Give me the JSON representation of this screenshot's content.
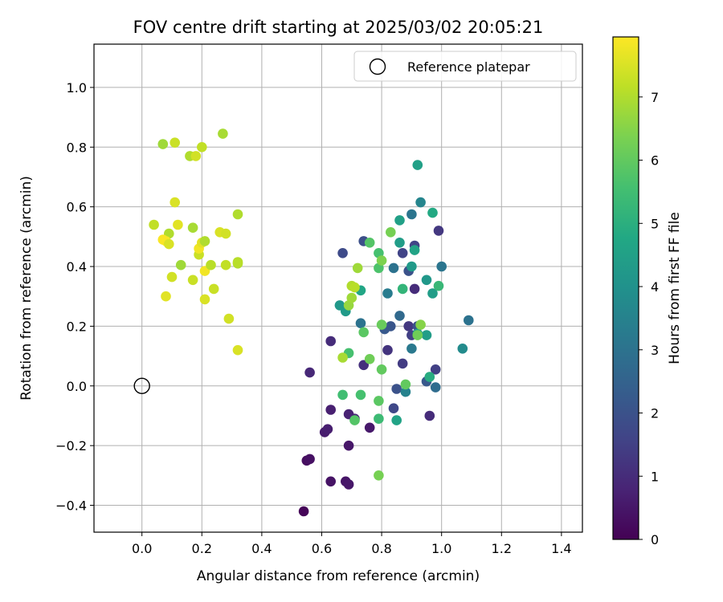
{
  "chart_data": {
    "type": "scatter",
    "title": "FOV centre drift starting at 2025/03/02 20:05:21",
    "xlabel": "Angular distance from reference (arcmin)",
    "ylabel": "Rotation from reference (arcmin)",
    "xlim": [
      -0.16,
      1.47
    ],
    "ylim": [
      -0.49,
      1.145
    ],
    "xticks": [
      0.0,
      0.2,
      0.4,
      0.6,
      0.8,
      1.0,
      1.2,
      1.4
    ],
    "xtick_labels": [
      "0.0",
      "0.2",
      "0.4",
      "0.6",
      "0.8",
      "1.0",
      "1.2",
      "1.4"
    ],
    "yticks": [
      -0.4,
      -0.2,
      0.0,
      0.2,
      0.4,
      0.6,
      0.8,
      1.0
    ],
    "ytick_labels": [
      "−0.4",
      "−0.2",
      "0.0",
      "0.2",
      "0.4",
      "0.6",
      "0.8",
      "1.0"
    ],
    "grid": true,
    "legend": {
      "position": "top-right",
      "entries": [
        "Reference platepar"
      ]
    },
    "reference_point": {
      "x": 0.0,
      "y": 0.0,
      "marker": "open-circle",
      "color": "#000000"
    },
    "colorbar": {
      "label": "Hours from first FF file",
      "colormap": "viridis",
      "range": [
        0,
        7.95
      ],
      "ticks": [
        0,
        1,
        2,
        3,
        4,
        5,
        6,
        7
      ],
      "tick_labels": [
        "0",
        "1",
        "2",
        "3",
        "4",
        "5",
        "6",
        "7"
      ]
    },
    "points": [
      {
        "x": 0.54,
        "y": -0.42,
        "t": 0.1
      },
      {
        "x": 0.55,
        "y": -0.25,
        "t": 0.3
      },
      {
        "x": 0.56,
        "y": -0.245,
        "t": 0.35
      },
      {
        "x": 0.63,
        "y": -0.32,
        "t": 0.4
      },
      {
        "x": 0.68,
        "y": -0.32,
        "t": 0.45
      },
      {
        "x": 0.69,
        "y": -0.33,
        "t": 0.5
      },
      {
        "x": 0.61,
        "y": -0.155,
        "t": 0.6
      },
      {
        "x": 0.62,
        "y": -0.145,
        "t": 0.65
      },
      {
        "x": 0.69,
        "y": -0.2,
        "t": 0.5
      },
      {
        "x": 0.76,
        "y": -0.14,
        "t": 0.55
      },
      {
        "x": 0.63,
        "y": -0.08,
        "t": 0.7
      },
      {
        "x": 0.69,
        "y": -0.095,
        "t": 0.75
      },
      {
        "x": 0.71,
        "y": -0.11,
        "t": 0.8
      },
      {
        "x": 0.56,
        "y": 0.045,
        "t": 0.9
      },
      {
        "x": 0.63,
        "y": 0.15,
        "t": 1.0
      },
      {
        "x": 0.74,
        "y": 0.07,
        "t": 1.1
      },
      {
        "x": 0.82,
        "y": 0.12,
        "t": 1.2
      },
      {
        "x": 0.84,
        "y": -0.075,
        "t": 1.7
      },
      {
        "x": 0.85,
        "y": -0.01,
        "t": 2.0
      },
      {
        "x": 0.87,
        "y": 0.075,
        "t": 1.4
      },
      {
        "x": 0.67,
        "y": 0.445,
        "t": 1.8
      },
      {
        "x": 0.74,
        "y": 0.485,
        "t": 1.9
      },
      {
        "x": 0.81,
        "y": 0.19,
        "t": 2.2
      },
      {
        "x": 0.83,
        "y": 0.2,
        "t": 2.1
      },
      {
        "x": 0.87,
        "y": 0.445,
        "t": 1.6
      },
      {
        "x": 0.89,
        "y": 0.2,
        "t": 1.3
      },
      {
        "x": 0.89,
        "y": 0.385,
        "t": 2.0
      },
      {
        "x": 0.9,
        "y": 0.17,
        "t": 1.5
      },
      {
        "x": 0.91,
        "y": 0.47,
        "t": 1.6
      },
      {
        "x": 0.91,
        "y": 0.325,
        "t": 1.0
      },
      {
        "x": 0.92,
        "y": 0.2,
        "t": 2.0
      },
      {
        "x": 0.96,
        "y": -0.1,
        "t": 1.0
      },
      {
        "x": 0.98,
        "y": 0.055,
        "t": 1.5
      },
      {
        "x": 0.99,
        "y": 0.52,
        "t": 1.3
      },
      {
        "x": 0.95,
        "y": 0.015,
        "t": 2.2
      },
      {
        "x": 0.98,
        "y": -0.005,
        "t": 2.8
      },
      {
        "x": 0.73,
        "y": 0.21,
        "t": 3.0
      },
      {
        "x": 0.82,
        "y": 0.31,
        "t": 3.3
      },
      {
        "x": 0.84,
        "y": 0.395,
        "t": 3.0
      },
      {
        "x": 0.86,
        "y": 0.235,
        "t": 2.7
      },
      {
        "x": 0.88,
        "y": -0.02,
        "t": 3.5
      },
      {
        "x": 0.9,
        "y": 0.575,
        "t": 3.1
      },
      {
        "x": 0.9,
        "y": 0.125,
        "t": 3.2
      },
      {
        "x": 0.93,
        "y": 0.615,
        "t": 3.6
      },
      {
        "x": 1.0,
        "y": 0.4,
        "t": 3.1
      },
      {
        "x": 1.09,
        "y": 0.22,
        "t": 3.0
      },
      {
        "x": 1.07,
        "y": 0.125,
        "t": 3.8
      },
      {
        "x": 0.92,
        "y": 0.74,
        "t": 4.5
      },
      {
        "x": 0.66,
        "y": 0.27,
        "t": 4.2
      },
      {
        "x": 0.68,
        "y": 0.25,
        "t": 4.3
      },
      {
        "x": 0.73,
        "y": 0.32,
        "t": 4.7
      },
      {
        "x": 0.85,
        "y": -0.115,
        "t": 4.6
      },
      {
        "x": 0.86,
        "y": 0.555,
        "t": 4.5
      },
      {
        "x": 0.86,
        "y": 0.48,
        "t": 4.4
      },
      {
        "x": 0.9,
        "y": 0.4,
        "t": 4.3
      },
      {
        "x": 0.91,
        "y": 0.455,
        "t": 4.6
      },
      {
        "x": 0.92,
        "y": 0.175,
        "t": 4.5
      },
      {
        "x": 0.95,
        "y": 0.355,
        "t": 4.2
      },
      {
        "x": 0.95,
        "y": 0.17,
        "t": 4.4
      },
      {
        "x": 0.96,
        "y": 0.03,
        "t": 4.9
      },
      {
        "x": 0.97,
        "y": 0.58,
        "t": 4.8
      },
      {
        "x": 0.97,
        "y": 0.31,
        "t": 4.4
      },
      {
        "x": 0.99,
        "y": 0.335,
        "t": 5.3
      },
      {
        "x": 0.87,
        "y": 0.325,
        "t": 5.2
      },
      {
        "x": 0.67,
        "y": -0.03,
        "t": 5.5
      },
      {
        "x": 0.73,
        "y": -0.03,
        "t": 5.6
      },
      {
        "x": 0.79,
        "y": -0.11,
        "t": 5.4
      },
      {
        "x": 0.79,
        "y": -0.05,
        "t": 5.9
      },
      {
        "x": 0.71,
        "y": -0.115,
        "t": 5.8
      },
      {
        "x": 0.69,
        "y": 0.11,
        "t": 5.6
      },
      {
        "x": 0.74,
        "y": 0.18,
        "t": 5.9
      },
      {
        "x": 0.76,
        "y": 0.09,
        "t": 6.2
      },
      {
        "x": 0.76,
        "y": 0.48,
        "t": 5.8
      },
      {
        "x": 0.79,
        "y": 0.445,
        "t": 5.6
      },
      {
        "x": 0.79,
        "y": 0.395,
        "t": 5.7
      },
      {
        "x": 0.8,
        "y": 0.055,
        "t": 6.0
      },
      {
        "x": 0.8,
        "y": 0.205,
        "t": 6.1
      },
      {
        "x": 0.8,
        "y": 0.42,
        "t": 6.4
      },
      {
        "x": 0.83,
        "y": 0.515,
        "t": 6.3
      },
      {
        "x": 0.88,
        "y": 0.005,
        "t": 6.0
      },
      {
        "x": 0.92,
        "y": 0.17,
        "t": 6.2
      },
      {
        "x": 0.93,
        "y": 0.205,
        "t": 6.5
      },
      {
        "x": 0.69,
        "y": 0.27,
        "t": 6.7
      },
      {
        "x": 0.7,
        "y": 0.295,
        "t": 6.8
      },
      {
        "x": 0.7,
        "y": 0.335,
        "t": 7.0
      },
      {
        "x": 0.71,
        "y": 0.33,
        "t": 7.1
      },
      {
        "x": 0.72,
        "y": 0.395,
        "t": 6.8
      },
      {
        "x": 0.67,
        "y": 0.095,
        "t": 6.9
      },
      {
        "x": 0.79,
        "y": -0.3,
        "t": 6.3
      },
      {
        "x": 0.07,
        "y": 0.81,
        "t": 6.8
      },
      {
        "x": 0.11,
        "y": 0.815,
        "t": 7.3
      },
      {
        "x": 0.16,
        "y": 0.77,
        "t": 7.0
      },
      {
        "x": 0.18,
        "y": 0.77,
        "t": 7.4
      },
      {
        "x": 0.2,
        "y": 0.8,
        "t": 7.2
      },
      {
        "x": 0.27,
        "y": 0.845,
        "t": 6.9
      },
      {
        "x": 0.04,
        "y": 0.54,
        "t": 7.2
      },
      {
        "x": 0.09,
        "y": 0.51,
        "t": 7.0
      },
      {
        "x": 0.07,
        "y": 0.49,
        "t": 7.9
      },
      {
        "x": 0.08,
        "y": 0.485,
        "t": 7.9
      },
      {
        "x": 0.09,
        "y": 0.475,
        "t": 7.5
      },
      {
        "x": 0.11,
        "y": 0.615,
        "t": 7.5
      },
      {
        "x": 0.12,
        "y": 0.54,
        "t": 7.6
      },
      {
        "x": 0.13,
        "y": 0.405,
        "t": 6.8
      },
      {
        "x": 0.17,
        "y": 0.53,
        "t": 6.9
      },
      {
        "x": 0.1,
        "y": 0.365,
        "t": 7.4
      },
      {
        "x": 0.08,
        "y": 0.3,
        "t": 7.6
      },
      {
        "x": 0.17,
        "y": 0.355,
        "t": 7.3
      },
      {
        "x": 0.19,
        "y": 0.44,
        "t": 7.3
      },
      {
        "x": 0.19,
        "y": 0.46,
        "t": 7.8
      },
      {
        "x": 0.2,
        "y": 0.48,
        "t": 7.6
      },
      {
        "x": 0.21,
        "y": 0.485,
        "t": 7.0
      },
      {
        "x": 0.21,
        "y": 0.29,
        "t": 7.5
      },
      {
        "x": 0.21,
        "y": 0.385,
        "t": 7.8
      },
      {
        "x": 0.23,
        "y": 0.405,
        "t": 7.1
      },
      {
        "x": 0.24,
        "y": 0.325,
        "t": 7.3
      },
      {
        "x": 0.26,
        "y": 0.515,
        "t": 7.5
      },
      {
        "x": 0.28,
        "y": 0.51,
        "t": 7.4
      },
      {
        "x": 0.28,
        "y": 0.405,
        "t": 7.2
      },
      {
        "x": 0.29,
        "y": 0.225,
        "t": 7.4
      },
      {
        "x": 0.32,
        "y": 0.41,
        "t": 7.0
      },
      {
        "x": 0.32,
        "y": 0.415,
        "t": 7.1
      },
      {
        "x": 0.32,
        "y": 0.575,
        "t": 7.0
      },
      {
        "x": 0.32,
        "y": 0.12,
        "t": 7.5
      }
    ]
  }
}
